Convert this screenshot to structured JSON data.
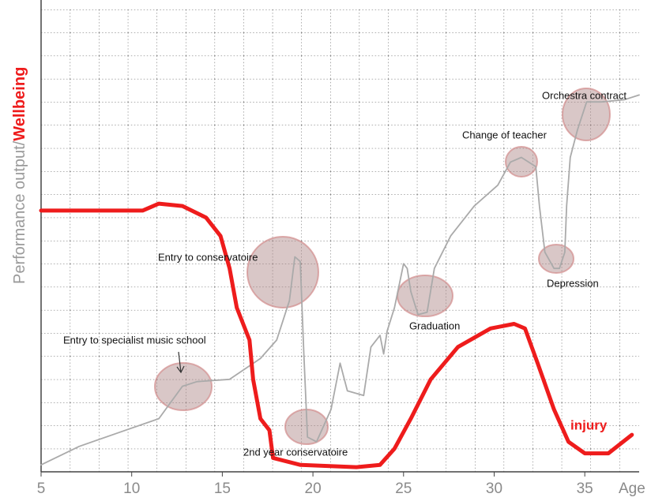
{
  "chart_data": {
    "type": "line",
    "ylabel": "Performance output/",
    "ylabel_highlight": "Wellbeing",
    "xlabel": "Age",
    "xlim": [
      5,
      38
    ],
    "ylim": [
      0,
      20
    ],
    "xticks": [
      5,
      10,
      15,
      20,
      25,
      30,
      35
    ],
    "series": [
      {
        "color": "#aaaaaa",
        "x": [
          5.0,
          7.1,
          9.3,
          11.5,
          12.8,
          13.6,
          15.4,
          17.1,
          18.0,
          18.7,
          19.0,
          19.3,
          19.5,
          19.7,
          20.2,
          21.0,
          21.5,
          21.9,
          22.8,
          23.2,
          23.7,
          23.9,
          24.1,
          24.5,
          25.0,
          25.2,
          25.4,
          25.8,
          26.3,
          26.7,
          27.6,
          28.9,
          30.2,
          30.9,
          31.5,
          32.3,
          32.5,
          32.8,
          33.3,
          33.6,
          33.9,
          34.0,
          34.2,
          34.6,
          35.1,
          35.9,
          37.2,
          38.0
        ],
        "values": [
          0.3,
          1.1,
          1.7,
          2.3,
          3.7,
          3.9,
          4.0,
          4.9,
          5.7,
          7.4,
          9.3,
          9.1,
          5.1,
          1.5,
          1.3,
          2.7,
          4.7,
          3.5,
          3.3,
          5.4,
          5.9,
          5.1,
          6.1,
          7.1,
          9.0,
          8.8,
          7.8,
          6.8,
          6.9,
          8.8,
          10.2,
          11.5,
          12.4,
          13.4,
          13.6,
          13.2,
          11.5,
          9.5,
          8.8,
          8.8,
          9.5,
          11.5,
          13.6,
          14.8,
          16.0,
          16.0,
          16.1,
          16.3
        ]
      },
      {
        "color": "#ee1c1c",
        "x": [
          5.0,
          10.6,
          11.5,
          12.8,
          14.1,
          14.9,
          15.4,
          15.8,
          16.5,
          16.7,
          17.1,
          17.6,
          17.8,
          19.3,
          22.4,
          23.7,
          24.5,
          25.4,
          26.5,
          28.0,
          29.8,
          31.1,
          31.7,
          32.4,
          33.3,
          34.1,
          35.0,
          36.3,
          37.6
        ],
        "values": [
          11.3,
          11.3,
          11.6,
          11.5,
          11.0,
          10.2,
          8.8,
          7.1,
          5.7,
          4.0,
          2.3,
          1.8,
          0.6,
          0.3,
          0.2,
          0.3,
          1.0,
          2.3,
          4.0,
          5.4,
          6.2,
          6.4,
          6.2,
          4.7,
          2.7,
          1.3,
          0.8,
          0.8,
          1.6
        ]
      }
    ],
    "annotations": [
      "Entry to specialist music school",
      "Entry to conservatoire",
      "2nd year conservatoire",
      "Graduation",
      "Change of teacher",
      "Orchestra contract",
      "Depression"
    ],
    "injury_label": "injury"
  }
}
